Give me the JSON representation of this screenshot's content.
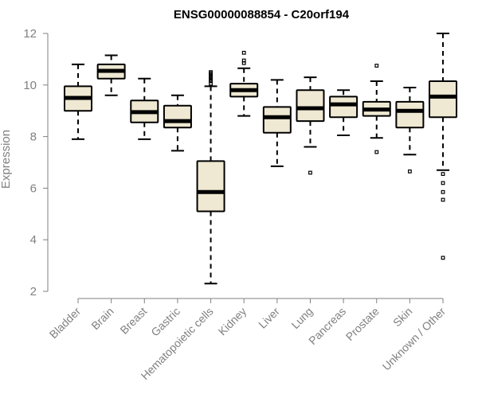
{
  "chart_data": {
    "type": "box",
    "title": "ENSG00000088854 - C20orf194",
    "ylabel": "Expression",
    "xlabel": "",
    "ylim": [
      2,
      12
    ],
    "yticks": [
      2,
      4,
      6,
      8,
      10,
      12
    ],
    "grid": false,
    "legend": "none",
    "colors": {
      "box_fill": "#efe8d2",
      "box_stroke": "#000000",
      "axis": "#808080",
      "title": "#000000"
    },
    "categories": [
      "Bladder",
      "Brain",
      "Breast",
      "Gastric",
      "Hematopoietic cells",
      "Kidney",
      "Liver",
      "Lung",
      "Pancreas",
      "Prostate",
      "Skin",
      "Unknown / Other"
    ],
    "boxes": [
      {
        "category": "Bladder",
        "whisker_low": 7.9,
        "q1": 9.0,
        "median": 9.5,
        "q3": 9.95,
        "whisker_high": 10.8,
        "outliers": []
      },
      {
        "category": "Brain",
        "whisker_low": 9.6,
        "q1": 10.25,
        "median": 10.55,
        "q3": 10.8,
        "whisker_high": 11.15,
        "outliers": []
      },
      {
        "category": "Breast",
        "whisker_low": 7.9,
        "q1": 8.55,
        "median": 8.95,
        "q3": 9.4,
        "whisker_high": 10.25,
        "outliers": []
      },
      {
        "category": "Gastric",
        "whisker_low": 7.45,
        "q1": 8.35,
        "median": 8.6,
        "q3": 9.2,
        "whisker_high": 9.6,
        "outliers": []
      },
      {
        "category": "Hematopoietic cells",
        "whisker_low": 2.3,
        "q1": 5.1,
        "median": 5.85,
        "q3": 7.05,
        "whisker_high": 9.95,
        "outliers": [
          10.05,
          10.15,
          10.2,
          10.25,
          10.3,
          10.35,
          10.4,
          10.45,
          10.5
        ]
      },
      {
        "category": "Kidney",
        "whisker_low": 8.8,
        "q1": 9.55,
        "median": 9.8,
        "q3": 10.05,
        "whisker_high": 10.65,
        "outliers": [
          10.85,
          10.95,
          11.25
        ]
      },
      {
        "category": "Liver",
        "whisker_low": 6.85,
        "q1": 8.15,
        "median": 8.75,
        "q3": 9.15,
        "whisker_high": 10.2,
        "outliers": []
      },
      {
        "category": "Lung",
        "whisker_low": 7.6,
        "q1": 8.6,
        "median": 9.1,
        "q3": 9.8,
        "whisker_high": 10.3,
        "outliers": [
          6.6
        ]
      },
      {
        "category": "Pancreas",
        "whisker_low": 8.05,
        "q1": 8.75,
        "median": 9.25,
        "q3": 9.55,
        "whisker_high": 9.8,
        "outliers": []
      },
      {
        "category": "Prostate",
        "whisker_low": 7.95,
        "q1": 8.8,
        "median": 9.05,
        "q3": 9.35,
        "whisker_high": 10.15,
        "outliers": [
          7.4,
          10.75
        ]
      },
      {
        "category": "Skin",
        "whisker_low": 7.3,
        "q1": 8.35,
        "median": 9.0,
        "q3": 9.35,
        "whisker_high": 9.9,
        "outliers": [
          6.65
        ]
      },
      {
        "category": "Unknown / Other",
        "whisker_low": 6.7,
        "q1": 8.75,
        "median": 9.55,
        "q3": 10.15,
        "whisker_high": 12.0,
        "outliers": [
          6.55,
          6.2,
          5.85,
          5.55,
          3.3
        ]
      }
    ]
  }
}
